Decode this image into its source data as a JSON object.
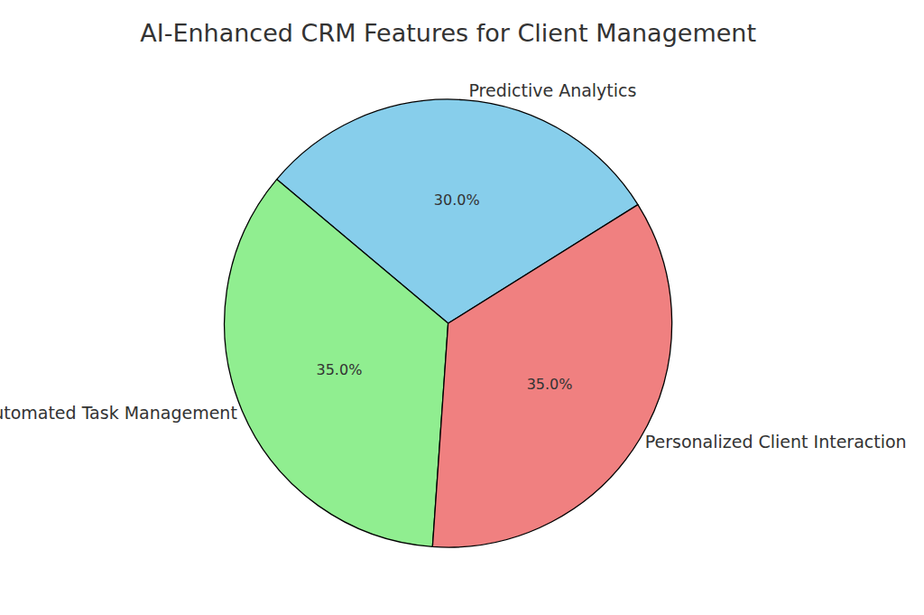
{
  "chart_data": {
    "type": "pie",
    "title": "AI-Enhanced CRM Features for Client Management",
    "categories": [
      "Predictive Analytics",
      "Automated Task Management",
      "Personalized Client Interaction"
    ],
    "values": [
      30,
      35,
      35
    ],
    "value_labels": [
      "30.0%",
      "35.0%",
      "35.0%"
    ],
    "colors": [
      "#87ceeb",
      "#90ee90",
      "#f08080"
    ],
    "data_labels": true
  }
}
